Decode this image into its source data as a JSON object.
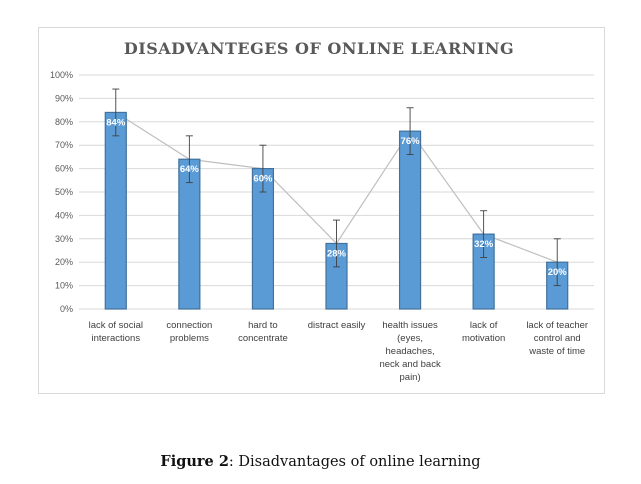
{
  "chart_data": {
    "type": "bar",
    "title": "DISADVANTEGES OF ONLINE LEARNING",
    "categories": [
      [
        "lack of social",
        "interactions"
      ],
      [
        "connection",
        "problems"
      ],
      [
        "hard to",
        "concentrate"
      ],
      [
        "distract easily"
      ],
      [
        "health issues",
        "(eyes,",
        "headaches,",
        "neck and back",
        "pain)"
      ],
      [
        "lack of",
        "motivation"
      ],
      [
        "lack of teacher",
        "control and",
        "waste of time"
      ]
    ],
    "values": [
      84,
      64,
      60,
      28,
      76,
      32,
      20
    ],
    "data_labels": [
      "84%",
      "64%",
      "60%",
      "28%",
      "76%",
      "32%",
      "20%"
    ],
    "error_bar": 10,
    "overlay_line": true,
    "ylim": [
      0,
      100
    ],
    "yticks": [
      "0%",
      "10%",
      "20%",
      "30%",
      "40%",
      "50%",
      "60%",
      "70%",
      "80%",
      "90%",
      "100%"
    ],
    "grid": true,
    "legend": "none",
    "colors": {
      "bar": "#5b9bd5",
      "bar_edge": "#41719c",
      "line": "#bfbfbf",
      "grid": "#d9d9d9",
      "error": "#404040"
    }
  },
  "caption": {
    "label": "Figure 2",
    "text": ": Disadvantages of online learning"
  }
}
